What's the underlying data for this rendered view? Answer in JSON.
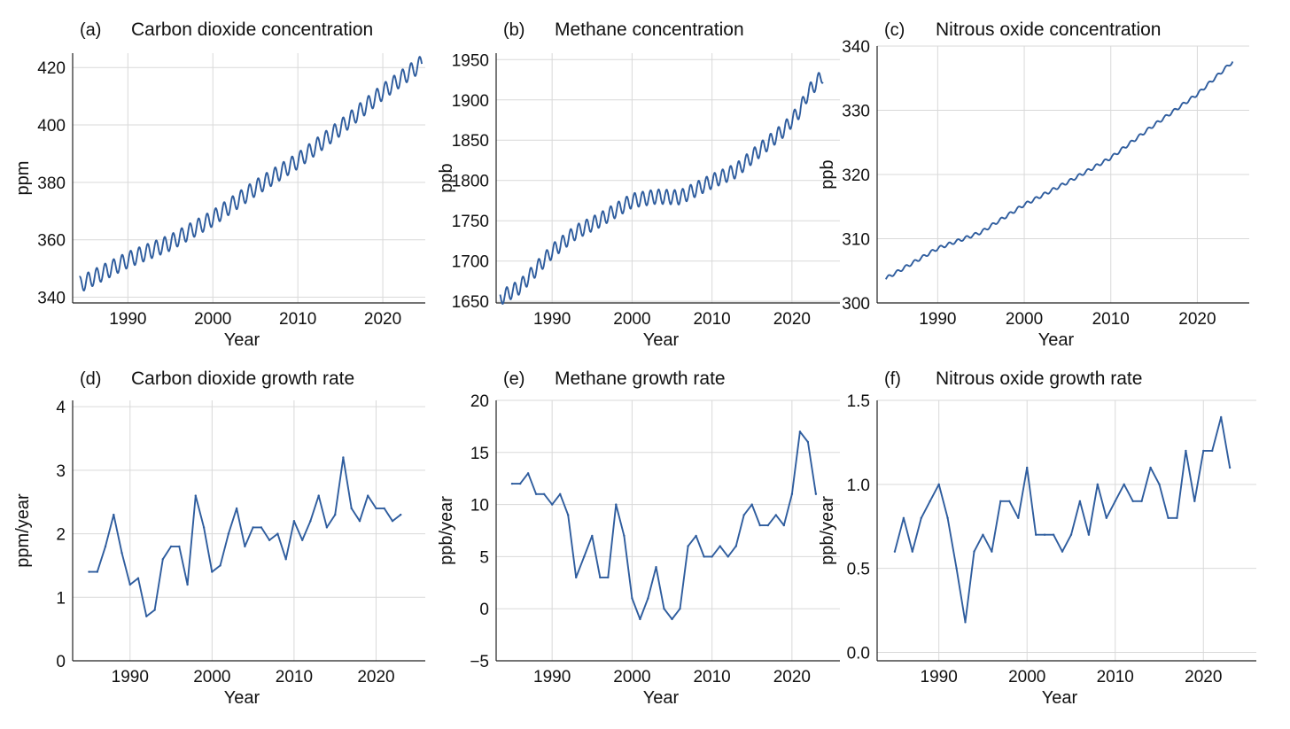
{
  "colors": {
    "series": "#2f5d9e",
    "grid": "#d9d9d9",
    "axis": "#222222"
  },
  "chart_data": [
    {
      "id": "a",
      "type": "line",
      "letter": "(a)",
      "title": "Carbon dioxide concentration",
      "xlabel": "Year",
      "ylabel": "ppm",
      "xlim": [
        1983.5,
        2025
      ],
      "ylim": [
        338,
        425
      ],
      "xticks": [
        1990,
        2000,
        2010,
        2020
      ],
      "yticks": [
        340,
        360,
        380,
        400,
        420
      ],
      "seasonal": {
        "start": 1984.3,
        "end": 2024.6,
        "amplitude": 2.8,
        "trend": [
          [
            1984.3,
            344.3
          ],
          [
            1990,
            353.0
          ],
          [
            1995,
            359.0
          ],
          [
            2000,
            367.5
          ],
          [
            2005,
            378.0
          ],
          [
            2010,
            387.5
          ],
          [
            2015,
            399.0
          ],
          [
            2020,
            411.5
          ],
          [
            2024.6,
            421.5
          ]
        ]
      },
      "grid": true
    },
    {
      "id": "b",
      "type": "line",
      "letter": "(b)",
      "title": "Methane concentration",
      "xlabel": "Year",
      "ylabel": "ppb",
      "xlim": [
        1983,
        2026
      ],
      "ylim": [
        1648,
        1958
      ],
      "xticks": [
        1990,
        2000,
        2010,
        2020
      ],
      "yticks": [
        1650,
        1700,
        1750,
        1800,
        1850,
        1900,
        1950
      ],
      "seasonal": {
        "start": 1983.5,
        "end": 2023.9,
        "amplitude": 9,
        "trend": [
          [
            1983.5,
            1654
          ],
          [
            1986,
            1668
          ],
          [
            1990,
            1712
          ],
          [
            1993,
            1736
          ],
          [
            1996,
            1751
          ],
          [
            2000,
            1775
          ],
          [
            2003,
            1780
          ],
          [
            2006,
            1779
          ],
          [
            2008,
            1789
          ],
          [
            2010,
            1799
          ],
          [
            2013,
            1812
          ],
          [
            2016,
            1838
          ],
          [
            2019,
            1863
          ],
          [
            2021,
            1887
          ],
          [
            2022,
            1909
          ],
          [
            2023.9,
            1931
          ]
        ]
      },
      "grid": true
    },
    {
      "id": "c",
      "type": "line",
      "letter": "(c)",
      "title": "Nitrous oxide concentration",
      "xlabel": "Year",
      "ylabel": "ppb",
      "xlim": [
        1983,
        2026
      ],
      "ylim": [
        300,
        340
      ],
      "xticks": [
        1990,
        2000,
        2010,
        2020
      ],
      "yticks": [
        300,
        310,
        320,
        330,
        340
      ],
      "seasonal": {
        "start": 1984.0,
        "end": 2024.1,
        "amplitude": 0.25,
        "trend": [
          [
            1984,
            303.8
          ],
          [
            1990,
            308.5
          ],
          [
            1995,
            311.0
          ],
          [
            2000,
            315.3
          ],
          [
            2005,
            318.8
          ],
          [
            2010,
            322.6
          ],
          [
            2015,
            327.7
          ],
          [
            2020,
            332.5
          ],
          [
            2024.1,
            337.6
          ]
        ]
      },
      "grid": true
    },
    {
      "id": "d",
      "type": "line",
      "letter": "(d)",
      "title": "Carbon dioxide growth rate",
      "xlabel": "Year",
      "ylabel": "ppm/year",
      "xlim": [
        1983,
        2026
      ],
      "ylim": [
        0,
        4.1
      ],
      "xticks": [
        1990,
        2000,
        2010,
        2020
      ],
      "yticks": [
        0,
        1,
        2,
        3,
        4
      ],
      "x": [
        1985,
        1986,
        1987,
        1988,
        1989,
        1990,
        1991,
        1992,
        1993,
        1994,
        1995,
        1996,
        1997,
        1998,
        1999,
        2000,
        2001,
        2002,
        2003,
        2004,
        2005,
        2006,
        2007,
        2008,
        2009,
        2010,
        2011,
        2012,
        2013,
        2014,
        2015,
        2016,
        2017,
        2018,
        2019,
        2020,
        2021,
        2022,
        2023
      ],
      "y": [
        1.4,
        1.4,
        1.8,
        2.3,
        1.7,
        1.2,
        1.3,
        0.7,
        0.8,
        1.6,
        1.8,
        1.8,
        1.2,
        2.6,
        2.1,
        1.4,
        1.5,
        2.0,
        2.4,
        1.8,
        2.1,
        2.1,
        1.9,
        2.0,
        1.6,
        2.2,
        1.9,
        2.2,
        2.6,
        2.1,
        2.3,
        3.2,
        2.4,
        2.2,
        2.6,
        2.4,
        2.4,
        2.2,
        2.3
      ],
      "grid": true
    },
    {
      "id": "e",
      "type": "line",
      "letter": "(e)",
      "title": "Methane growth rate",
      "xlabel": "Year",
      "ylabel": "ppb/year",
      "xlim": [
        1983,
        2026
      ],
      "ylim": [
        -5,
        20
      ],
      "xticks": [
        1990,
        2000,
        2010,
        2020
      ],
      "yticks": [
        -5,
        0,
        5,
        10,
        15,
        20
      ],
      "ytick_labels": [
        "−5",
        "0",
        "5",
        "10",
        "15",
        "20"
      ],
      "x": [
        1985,
        1986,
        1987,
        1988,
        1989,
        1990,
        1991,
        1992,
        1993,
        1994,
        1995,
        1996,
        1997,
        1998,
        1999,
        2000,
        2001,
        2002,
        2003,
        2004,
        2005,
        2006,
        2007,
        2008,
        2009,
        2010,
        2011,
        2012,
        2013,
        2014,
        2015,
        2016,
        2017,
        2018,
        2019,
        2020,
        2021,
        2022,
        2023
      ],
      "y": [
        12,
        12,
        13,
        11,
        11,
        10,
        11,
        9,
        3,
        5,
        7,
        3,
        3,
        10,
        7,
        1,
        -1,
        1,
        4,
        0,
        -1,
        0,
        6,
        7,
        5,
        5,
        6,
        5,
        6,
        9,
        10,
        8,
        8,
        9,
        8,
        11,
        17,
        16,
        11
      ],
      "grid": true
    },
    {
      "id": "f",
      "type": "line",
      "letter": "(f)",
      "title": "Nitrous oxide growth rate",
      "xlabel": "Year",
      "ylabel": "ppb/year",
      "xlim": [
        1983,
        2026
      ],
      "ylim": [
        -0.05,
        1.5
      ],
      "xticks": [
        1990,
        2000,
        2010,
        2020
      ],
      "yticks": [
        0,
        0.5,
        1.0,
        1.5
      ],
      "ytick_labels": [
        "0.0",
        "0.5",
        "1.0",
        "1.5"
      ],
      "x": [
        1985,
        1986,
        1987,
        1988,
        1989,
        1990,
        1991,
        1992,
        1993,
        1994,
        1995,
        1996,
        1997,
        1998,
        1999,
        2000,
        2001,
        2002,
        2003,
        2004,
        2005,
        2006,
        2007,
        2008,
        2009,
        2010,
        2011,
        2012,
        2013,
        2014,
        2015,
        2016,
        2017,
        2018,
        2019,
        2020,
        2021,
        2022,
        2023
      ],
      "y": [
        0.6,
        0.8,
        0.6,
        0.8,
        0.9,
        1.0,
        0.8,
        0.5,
        0.18,
        0.6,
        0.7,
        0.6,
        0.9,
        0.9,
        0.8,
        1.1,
        0.7,
        0.7,
        0.7,
        0.6,
        0.7,
        0.9,
        0.7,
        1.0,
        0.8,
        0.9,
        1.0,
        0.9,
        0.9,
        1.1,
        1.0,
        0.8,
        0.8,
        1.2,
        0.9,
        1.2,
        1.2,
        1.4,
        1.1
      ],
      "grid": true
    }
  ]
}
